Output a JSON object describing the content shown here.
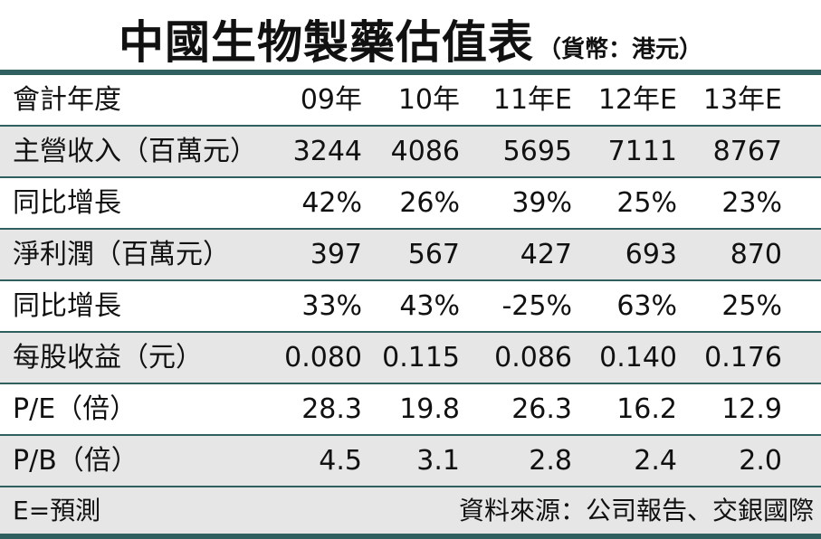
{
  "title": {
    "main": "中國生物製藥估值表",
    "sub": "（貨幣：港元）"
  },
  "chart_data": {
    "type": "table",
    "columns": [
      "會計年度",
      "09年",
      "10年",
      "11年E",
      "12年E",
      "13年E"
    ],
    "rows": [
      {
        "label": "主營收入（百萬元）",
        "values": [
          "3244",
          "4086",
          "5695",
          "7111",
          "8767"
        ]
      },
      {
        "label": "同比增長",
        "values": [
          "42%",
          "26%",
          "39%",
          "25%",
          "23%"
        ]
      },
      {
        "label": "淨利潤（百萬元）",
        "values": [
          "397",
          "567",
          "427",
          "693",
          "870"
        ]
      },
      {
        "label": "同比增長",
        "values": [
          "33%",
          "43%",
          "-25%",
          "63%",
          "25%"
        ]
      },
      {
        "label": "每股收益（元）",
        "values": [
          "0.080",
          "0.115",
          "0.086",
          "0.140",
          "0.176"
        ]
      },
      {
        "label": "P/E（倍）",
        "values": [
          "28.3",
          "19.8",
          "26.3",
          "16.2",
          "12.9"
        ]
      },
      {
        "label": "P/B（倍）",
        "values": [
          "4.5",
          "3.1",
          "2.8",
          "2.4",
          "2.0"
        ]
      }
    ]
  },
  "footer": {
    "note": "E=預測",
    "source": "資料來源：公司報告、交銀國際"
  },
  "colors": {
    "rule": "#2f5f5e",
    "shade": "#e6e6e6"
  }
}
